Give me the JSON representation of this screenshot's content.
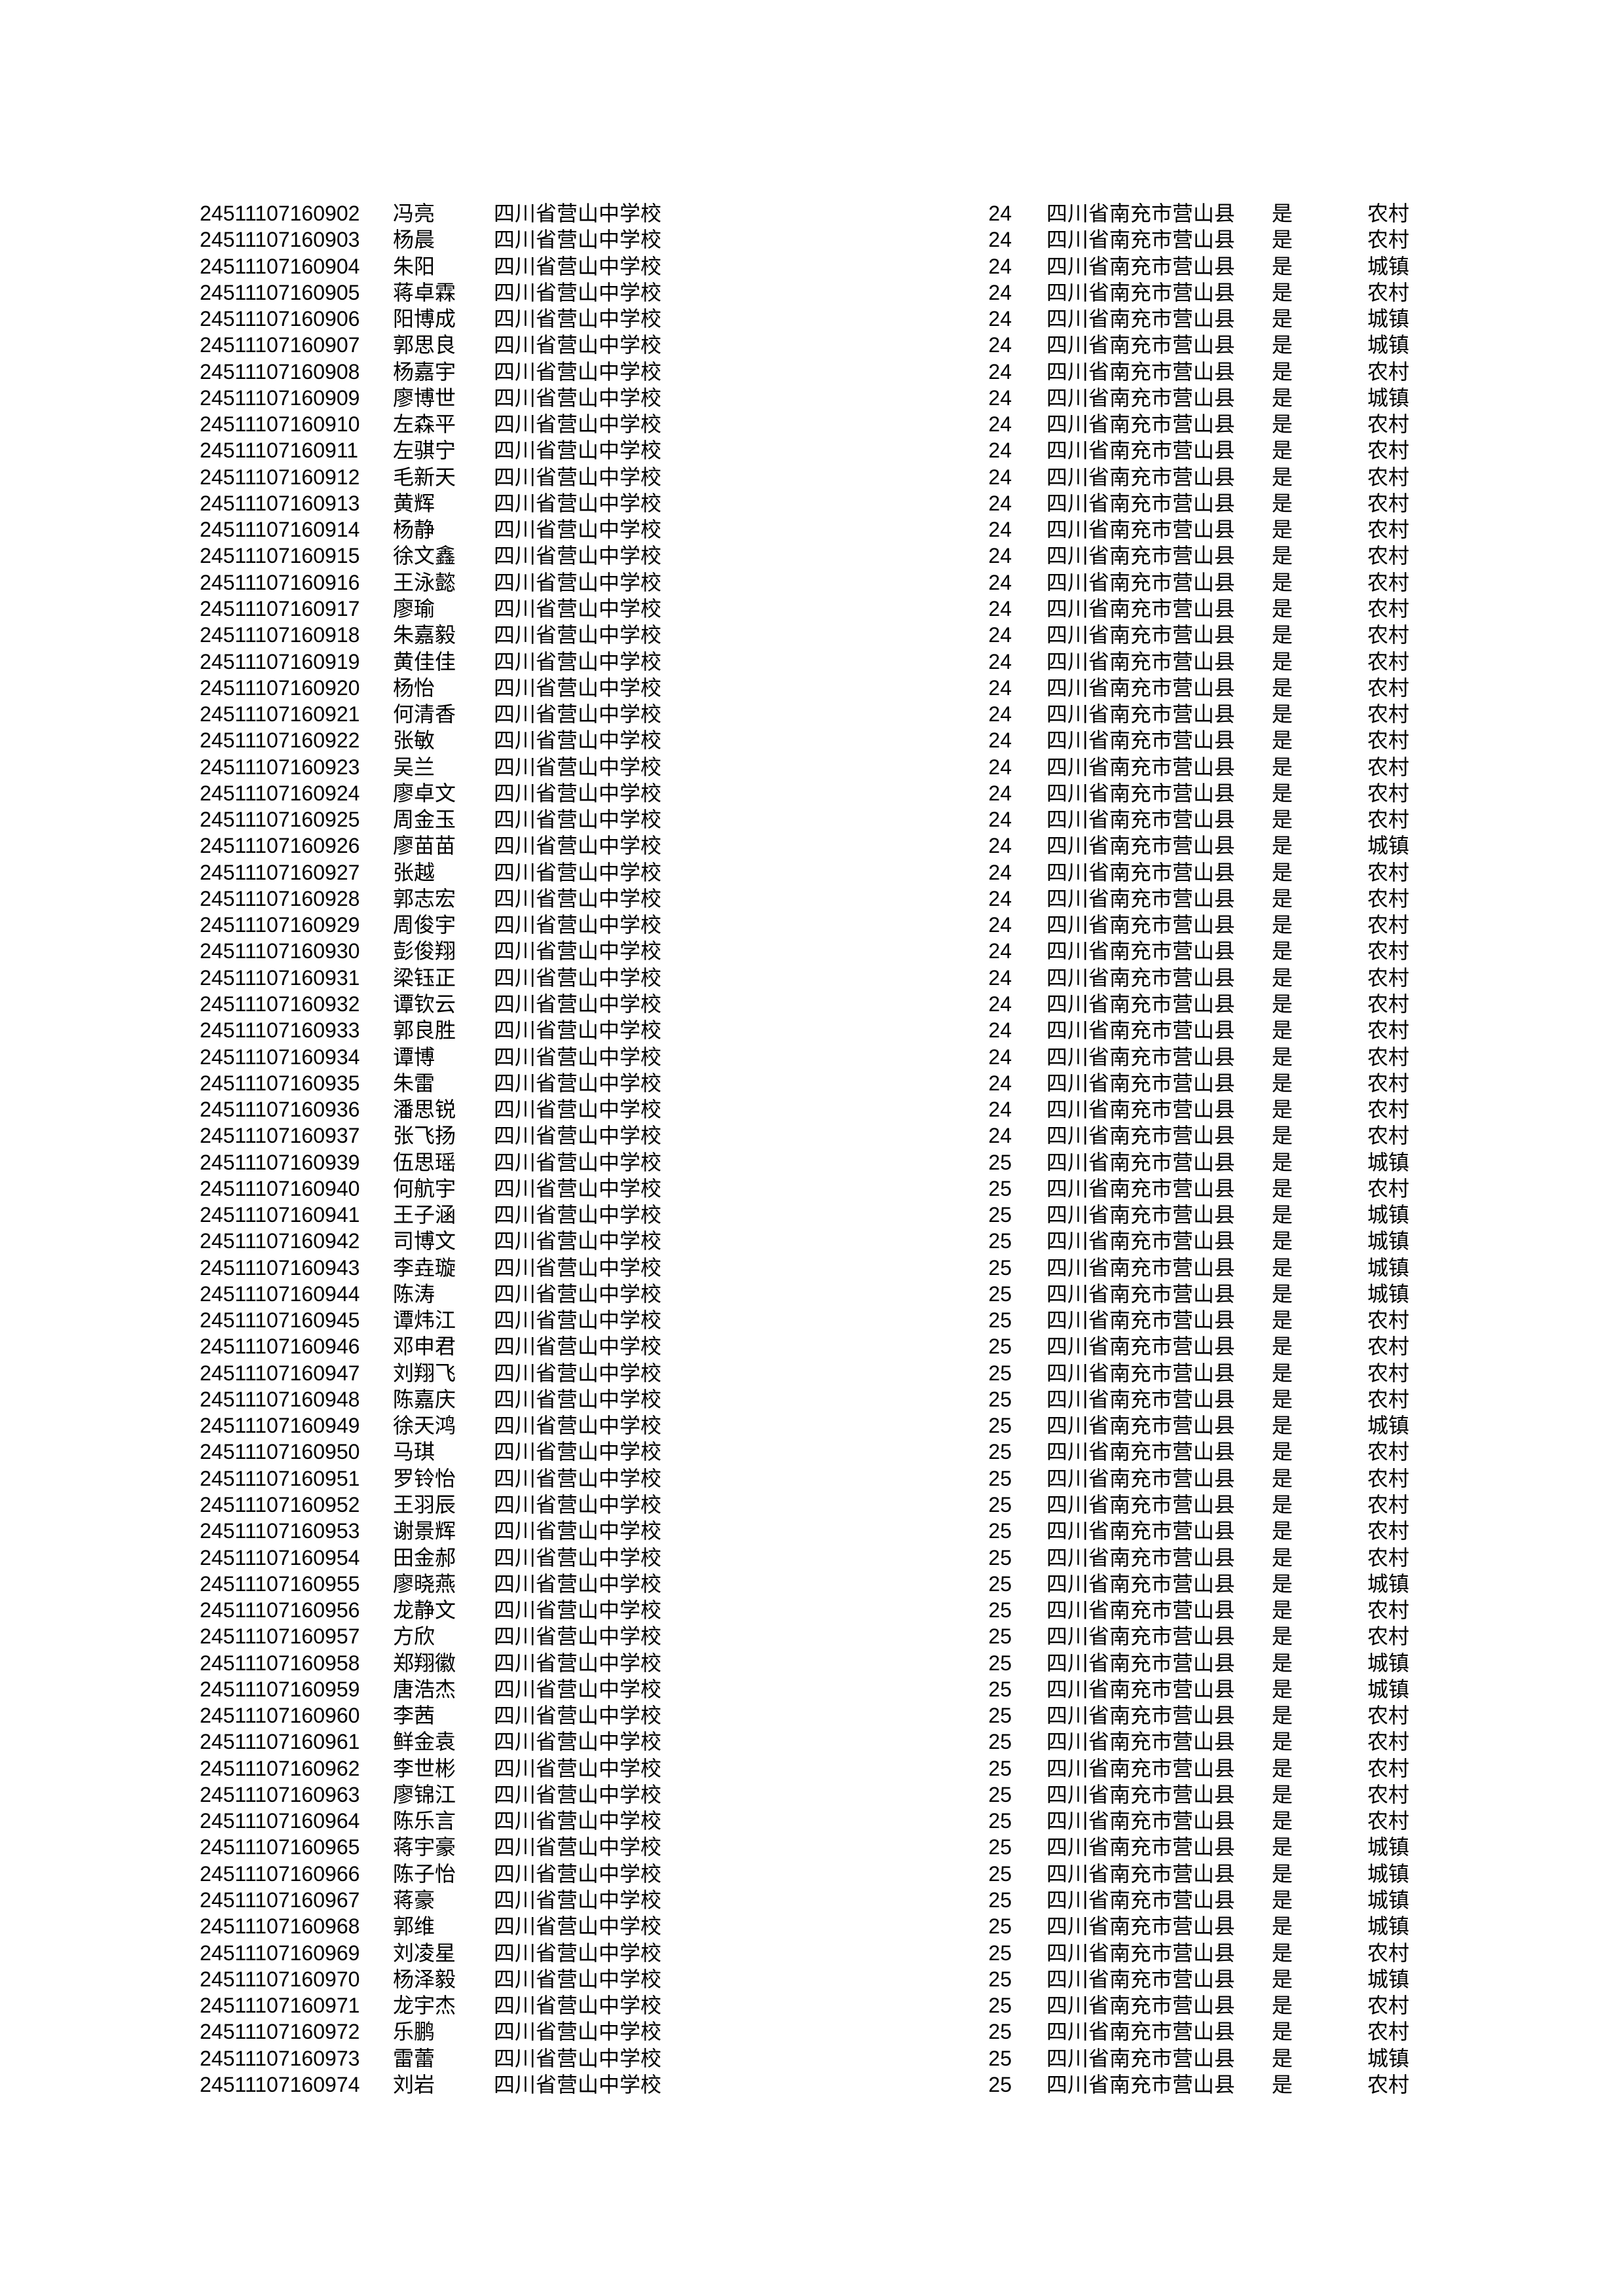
{
  "page": {
    "title": "",
    "colors": {
      "text": "#000000",
      "background": "#ffffff"
    }
  },
  "table": {
    "column_keys": [
      "exam-id",
      "student-name",
      "school",
      "age",
      "household-location",
      "flag-yes",
      "residence-type"
    ],
    "rows": [
      [
        "24511107160902",
        "冯亮",
        "四川省营山中学校",
        "24",
        "四川省南充市营山县",
        "是",
        "农村"
      ],
      [
        "24511107160903",
        "杨晨",
        "四川省营山中学校",
        "24",
        "四川省南充市营山县",
        "是",
        "农村"
      ],
      [
        "24511107160904",
        "朱阳",
        "四川省营山中学校",
        "24",
        "四川省南充市营山县",
        "是",
        "城镇"
      ],
      [
        "24511107160905",
        "蒋卓霖",
        "四川省营山中学校",
        "24",
        "四川省南充市营山县",
        "是",
        "农村"
      ],
      [
        "24511107160906",
        "阳博成",
        "四川省营山中学校",
        "24",
        "四川省南充市营山县",
        "是",
        "城镇"
      ],
      [
        "24511107160907",
        "郭思良",
        "四川省营山中学校",
        "24",
        "四川省南充市营山县",
        "是",
        "城镇"
      ],
      [
        "24511107160908",
        "杨嘉宇",
        "四川省营山中学校",
        "24",
        "四川省南充市营山县",
        "是",
        "农村"
      ],
      [
        "24511107160909",
        "廖博世",
        "四川省营山中学校",
        "24",
        "四川省南充市营山县",
        "是",
        "城镇"
      ],
      [
        "24511107160910",
        "左森平",
        "四川省营山中学校",
        "24",
        "四川省南充市营山县",
        "是",
        "农村"
      ],
      [
        "24511107160911",
        "左骐宁",
        "四川省营山中学校",
        "24",
        "四川省南充市营山县",
        "是",
        "农村"
      ],
      [
        "24511107160912",
        "毛新天",
        "四川省营山中学校",
        "24",
        "四川省南充市营山县",
        "是",
        "农村"
      ],
      [
        "24511107160913",
        "黄辉",
        "四川省营山中学校",
        "24",
        "四川省南充市营山县",
        "是",
        "农村"
      ],
      [
        "24511107160914",
        "杨静",
        "四川省营山中学校",
        "24",
        "四川省南充市营山县",
        "是",
        "农村"
      ],
      [
        "24511107160915",
        "徐文鑫",
        "四川省营山中学校",
        "24",
        "四川省南充市营山县",
        "是",
        "农村"
      ],
      [
        "24511107160916",
        "王泳懿",
        "四川省营山中学校",
        "24",
        "四川省南充市营山县",
        "是",
        "农村"
      ],
      [
        "24511107160917",
        "廖瑜",
        "四川省营山中学校",
        "24",
        "四川省南充市营山县",
        "是",
        "农村"
      ],
      [
        "24511107160918",
        "朱嘉毅",
        "四川省营山中学校",
        "24",
        "四川省南充市营山县",
        "是",
        "农村"
      ],
      [
        "24511107160919",
        "黄佳佳",
        "四川省营山中学校",
        "24",
        "四川省南充市营山县",
        "是",
        "农村"
      ],
      [
        "24511107160920",
        "杨怡",
        "四川省营山中学校",
        "24",
        "四川省南充市营山县",
        "是",
        "农村"
      ],
      [
        "24511107160921",
        "何清香",
        "四川省营山中学校",
        "24",
        "四川省南充市营山县",
        "是",
        "农村"
      ],
      [
        "24511107160922",
        "张敏",
        "四川省营山中学校",
        "24",
        "四川省南充市营山县",
        "是",
        "农村"
      ],
      [
        "24511107160923",
        "吴兰",
        "四川省营山中学校",
        "24",
        "四川省南充市营山县",
        "是",
        "农村"
      ],
      [
        "24511107160924",
        "廖卓文",
        "四川省营山中学校",
        "24",
        "四川省南充市营山县",
        "是",
        "农村"
      ],
      [
        "24511107160925",
        "周金玉",
        "四川省营山中学校",
        "24",
        "四川省南充市营山县",
        "是",
        "农村"
      ],
      [
        "24511107160926",
        "廖苗苗",
        "四川省营山中学校",
        "24",
        "四川省南充市营山县",
        "是",
        "城镇"
      ],
      [
        "24511107160927",
        "张越",
        "四川省营山中学校",
        "24",
        "四川省南充市营山县",
        "是",
        "农村"
      ],
      [
        "24511107160928",
        "郭志宏",
        "四川省营山中学校",
        "24",
        "四川省南充市营山县",
        "是",
        "农村"
      ],
      [
        "24511107160929",
        "周俊宇",
        "四川省营山中学校",
        "24",
        "四川省南充市营山县",
        "是",
        "农村"
      ],
      [
        "24511107160930",
        "彭俊翔",
        "四川省营山中学校",
        "24",
        "四川省南充市营山县",
        "是",
        "农村"
      ],
      [
        "24511107160931",
        "梁钰正",
        "四川省营山中学校",
        "24",
        "四川省南充市营山县",
        "是",
        "农村"
      ],
      [
        "24511107160932",
        "谭钦云",
        "四川省营山中学校",
        "24",
        "四川省南充市营山县",
        "是",
        "农村"
      ],
      [
        "24511107160933",
        "郭良胜",
        "四川省营山中学校",
        "24",
        "四川省南充市营山县",
        "是",
        "农村"
      ],
      [
        "24511107160934",
        "谭博",
        "四川省营山中学校",
        "24",
        "四川省南充市营山县",
        "是",
        "农村"
      ],
      [
        "24511107160935",
        "朱雷",
        "四川省营山中学校",
        "24",
        "四川省南充市营山县",
        "是",
        "农村"
      ],
      [
        "24511107160936",
        "潘思锐",
        "四川省营山中学校",
        "24",
        "四川省南充市营山县",
        "是",
        "农村"
      ],
      [
        "24511107160937",
        "张飞扬",
        "四川省营山中学校",
        "24",
        "四川省南充市营山县",
        "是",
        "农村"
      ],
      [
        "24511107160939",
        "伍思瑶",
        "四川省营山中学校",
        "25",
        "四川省南充市营山县",
        "是",
        "城镇"
      ],
      [
        "24511107160940",
        "何航宇",
        "四川省营山中学校",
        "25",
        "四川省南充市营山县",
        "是",
        "农村"
      ],
      [
        "24511107160941",
        "王子涵",
        "四川省营山中学校",
        "25",
        "四川省南充市营山县",
        "是",
        "城镇"
      ],
      [
        "24511107160942",
        "司博文",
        "四川省营山中学校",
        "25",
        "四川省南充市营山县",
        "是",
        "城镇"
      ],
      [
        "24511107160943",
        "李垚璇",
        "四川省营山中学校",
        "25",
        "四川省南充市营山县",
        "是",
        "城镇"
      ],
      [
        "24511107160944",
        "陈涛",
        "四川省营山中学校",
        "25",
        "四川省南充市营山县",
        "是",
        "城镇"
      ],
      [
        "24511107160945",
        "谭炜江",
        "四川省营山中学校",
        "25",
        "四川省南充市营山县",
        "是",
        "农村"
      ],
      [
        "24511107160946",
        "邓申君",
        "四川省营山中学校",
        "25",
        "四川省南充市营山县",
        "是",
        "农村"
      ],
      [
        "24511107160947",
        "刘翔飞",
        "四川省营山中学校",
        "25",
        "四川省南充市营山县",
        "是",
        "农村"
      ],
      [
        "24511107160948",
        "陈嘉庆",
        "四川省营山中学校",
        "25",
        "四川省南充市营山县",
        "是",
        "农村"
      ],
      [
        "24511107160949",
        "徐天鸿",
        "四川省营山中学校",
        "25",
        "四川省南充市营山县",
        "是",
        "城镇"
      ],
      [
        "24511107160950",
        "马琪",
        "四川省营山中学校",
        "25",
        "四川省南充市营山县",
        "是",
        "农村"
      ],
      [
        "24511107160951",
        "罗铃怡",
        "四川省营山中学校",
        "25",
        "四川省南充市营山县",
        "是",
        "农村"
      ],
      [
        "24511107160952",
        "王羽辰",
        "四川省营山中学校",
        "25",
        "四川省南充市营山县",
        "是",
        "农村"
      ],
      [
        "24511107160953",
        "谢景辉",
        "四川省营山中学校",
        "25",
        "四川省南充市营山县",
        "是",
        "农村"
      ],
      [
        "24511107160954",
        "田金郝",
        "四川省营山中学校",
        "25",
        "四川省南充市营山县",
        "是",
        "农村"
      ],
      [
        "24511107160955",
        "廖晓燕",
        "四川省营山中学校",
        "25",
        "四川省南充市营山县",
        "是",
        "城镇"
      ],
      [
        "24511107160956",
        "龙静文",
        "四川省营山中学校",
        "25",
        "四川省南充市营山县",
        "是",
        "农村"
      ],
      [
        "24511107160957",
        "方欣",
        "四川省营山中学校",
        "25",
        "四川省南充市营山县",
        "是",
        "农村"
      ],
      [
        "24511107160958",
        "郑翔徽",
        "四川省营山中学校",
        "25",
        "四川省南充市营山县",
        "是",
        "城镇"
      ],
      [
        "24511107160959",
        "唐浩杰",
        "四川省营山中学校",
        "25",
        "四川省南充市营山县",
        "是",
        "城镇"
      ],
      [
        "24511107160960",
        "李茜",
        "四川省营山中学校",
        "25",
        "四川省南充市营山县",
        "是",
        "农村"
      ],
      [
        "24511107160961",
        "鲜金袁",
        "四川省营山中学校",
        "25",
        "四川省南充市营山县",
        "是",
        "农村"
      ],
      [
        "24511107160962",
        "李世彬",
        "四川省营山中学校",
        "25",
        "四川省南充市营山县",
        "是",
        "农村"
      ],
      [
        "24511107160963",
        "廖锦江",
        "四川省营山中学校",
        "25",
        "四川省南充市营山县",
        "是",
        "农村"
      ],
      [
        "24511107160964",
        "陈乐言",
        "四川省营山中学校",
        "25",
        "四川省南充市营山县",
        "是",
        "农村"
      ],
      [
        "24511107160965",
        "蒋宇豪",
        "四川省营山中学校",
        "25",
        "四川省南充市营山县",
        "是",
        "城镇"
      ],
      [
        "24511107160966",
        "陈子怡",
        "四川省营山中学校",
        "25",
        "四川省南充市营山县",
        "是",
        "城镇"
      ],
      [
        "24511107160967",
        "蒋豪",
        "四川省营山中学校",
        "25",
        "四川省南充市营山县",
        "是",
        "城镇"
      ],
      [
        "24511107160968",
        "郭维",
        "四川省营山中学校",
        "25",
        "四川省南充市营山县",
        "是",
        "城镇"
      ],
      [
        "24511107160969",
        "刘凌星",
        "四川省营山中学校",
        "25",
        "四川省南充市营山县",
        "是",
        "农村"
      ],
      [
        "24511107160970",
        "杨泽毅",
        "四川省营山中学校",
        "25",
        "四川省南充市营山县",
        "是",
        "城镇"
      ],
      [
        "24511107160971",
        "龙宇杰",
        "四川省营山中学校",
        "25",
        "四川省南充市营山县",
        "是",
        "农村"
      ],
      [
        "24511107160972",
        "乐鹏",
        "四川省营山中学校",
        "25",
        "四川省南充市营山县",
        "是",
        "农村"
      ],
      [
        "24511107160973",
        "雷蕾",
        "四川省营山中学校",
        "25",
        "四川省南充市营山县",
        "是",
        "城镇"
      ],
      [
        "24511107160974",
        "刘岩",
        "四川省营山中学校",
        "25",
        "四川省南充市营山县",
        "是",
        "农村"
      ]
    ]
  }
}
